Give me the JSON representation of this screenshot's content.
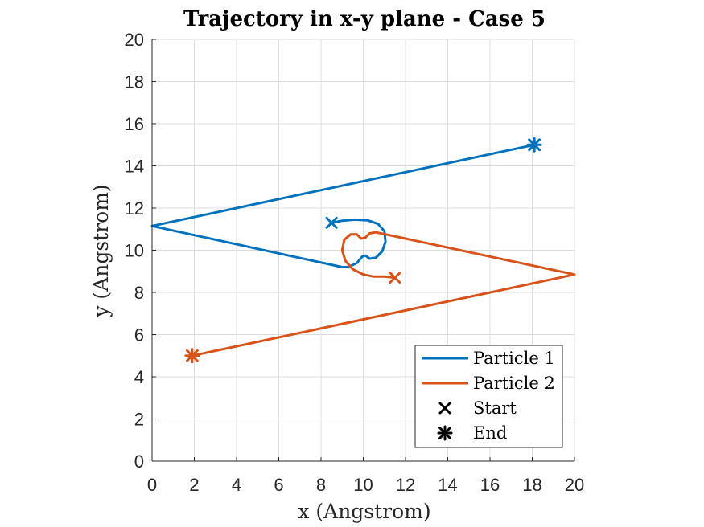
{
  "chart_data": {
    "type": "line",
    "title": "Trajectory in x-y plane - Case 5",
    "xlabel": "x (Angstrom)",
    "ylabel": "y (Angstrom)",
    "xlim": [
      0,
      20
    ],
    "ylim": [
      0,
      20
    ],
    "xticks": [
      0,
      2,
      4,
      6,
      8,
      10,
      12,
      14,
      16,
      18,
      20
    ],
    "yticks": [
      0,
      2,
      4,
      6,
      8,
      10,
      12,
      14,
      16,
      18,
      20
    ],
    "grid": true,
    "legend_position": "bottom-right",
    "series": [
      {
        "name": "Particle 1",
        "color": "#0072BD",
        "points": [
          [
            8.5,
            11.3
          ],
          [
            9.0,
            11.4
          ],
          [
            9.6,
            11.45
          ],
          [
            10.2,
            11.42
          ],
          [
            10.7,
            11.25
          ],
          [
            11.0,
            10.9
          ],
          [
            11.05,
            10.4
          ],
          [
            10.9,
            9.95
          ],
          [
            10.6,
            9.65
          ],
          [
            10.3,
            9.6
          ],
          [
            10.1,
            9.75
          ],
          [
            9.95,
            9.7
          ],
          [
            9.7,
            9.4
          ],
          [
            9.3,
            9.2
          ],
          [
            9.0,
            9.2
          ],
          [
            0.0,
            11.15
          ],
          [
            18.1,
            15.0
          ]
        ]
      },
      {
        "name": "Particle 2",
        "color": "#D95319",
        "points": [
          [
            11.5,
            8.7
          ],
          [
            11.0,
            8.75
          ],
          [
            10.5,
            8.75
          ],
          [
            10.0,
            8.85
          ],
          [
            9.5,
            9.1
          ],
          [
            9.15,
            9.5
          ],
          [
            9.0,
            10.0
          ],
          [
            9.1,
            10.5
          ],
          [
            9.4,
            10.75
          ],
          [
            9.7,
            10.75
          ],
          [
            9.9,
            10.55
          ],
          [
            10.1,
            10.6
          ],
          [
            10.3,
            10.8
          ],
          [
            10.6,
            10.85
          ],
          [
            20.0,
            8.85
          ],
          [
            1.9,
            5.0
          ]
        ]
      }
    ],
    "markers": [
      {
        "type": "start",
        "series": "Particle 1",
        "x": 8.5,
        "y": 11.3
      },
      {
        "type": "end",
        "series": "Particle 1",
        "x": 18.1,
        "y": 15.0
      },
      {
        "type": "start",
        "series": "Particle 2",
        "x": 11.5,
        "y": 8.7
      },
      {
        "type": "end",
        "series": "Particle 2",
        "x": 1.9,
        "y": 5.0
      }
    ],
    "legend": [
      {
        "label": "Particle 1",
        "kind": "line",
        "color": "#0072BD"
      },
      {
        "label": "Particle 2",
        "kind": "line",
        "color": "#D95319"
      },
      {
        "label": "Start",
        "kind": "cross",
        "color": "#000000"
      },
      {
        "label": "End",
        "kind": "asterisk",
        "color": "#000000"
      }
    ]
  }
}
